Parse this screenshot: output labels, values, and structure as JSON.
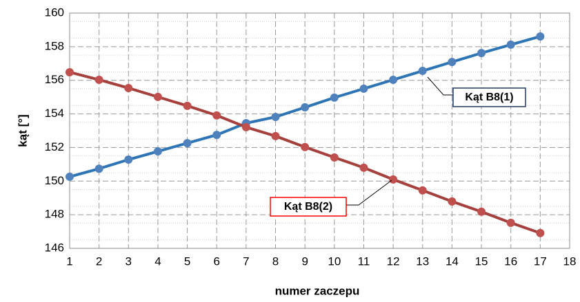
{
  "chart_data": {
    "type": "line",
    "x_label": "numer zaczepu",
    "y_label": "kąt [°]",
    "x": [
      1,
      2,
      3,
      4,
      5,
      6,
      7,
      8,
      9,
      10,
      11,
      12,
      13,
      14,
      15,
      16,
      17
    ],
    "series": [
      {
        "name": "Kąt B8(1)",
        "color": "#2e75b6",
        "marker_color": "#4f81bd",
        "label_color": "#1f3864",
        "values": [
          150.26,
          150.74,
          151.28,
          151.77,
          152.26,
          152.75,
          153.45,
          153.82,
          154.39,
          154.97,
          155.5,
          156.03,
          156.56,
          157.09,
          157.62,
          158.12,
          158.61
        ]
      },
      {
        "name": "Kąt B8(2)",
        "color": "#a6403c",
        "marker_color": "#c0504d",
        "label_color": "#ff0000",
        "values": [
          156.48,
          156.03,
          155.54,
          155.01,
          154.48,
          153.91,
          153.21,
          152.68,
          152.03,
          151.41,
          150.8,
          150.1,
          149.45,
          148.79,
          148.18,
          147.52,
          146.91
        ]
      }
    ],
    "xlim": [
      1,
      18
    ],
    "xticks": [
      1,
      2,
      3,
      4,
      5,
      6,
      7,
      8,
      9,
      10,
      11,
      12,
      13,
      14,
      15,
      16,
      17,
      18
    ],
    "ylim": [
      146,
      160
    ],
    "yticks": [
      146,
      148,
      150,
      152,
      154,
      156,
      158,
      160
    ],
    "grid": true
  }
}
